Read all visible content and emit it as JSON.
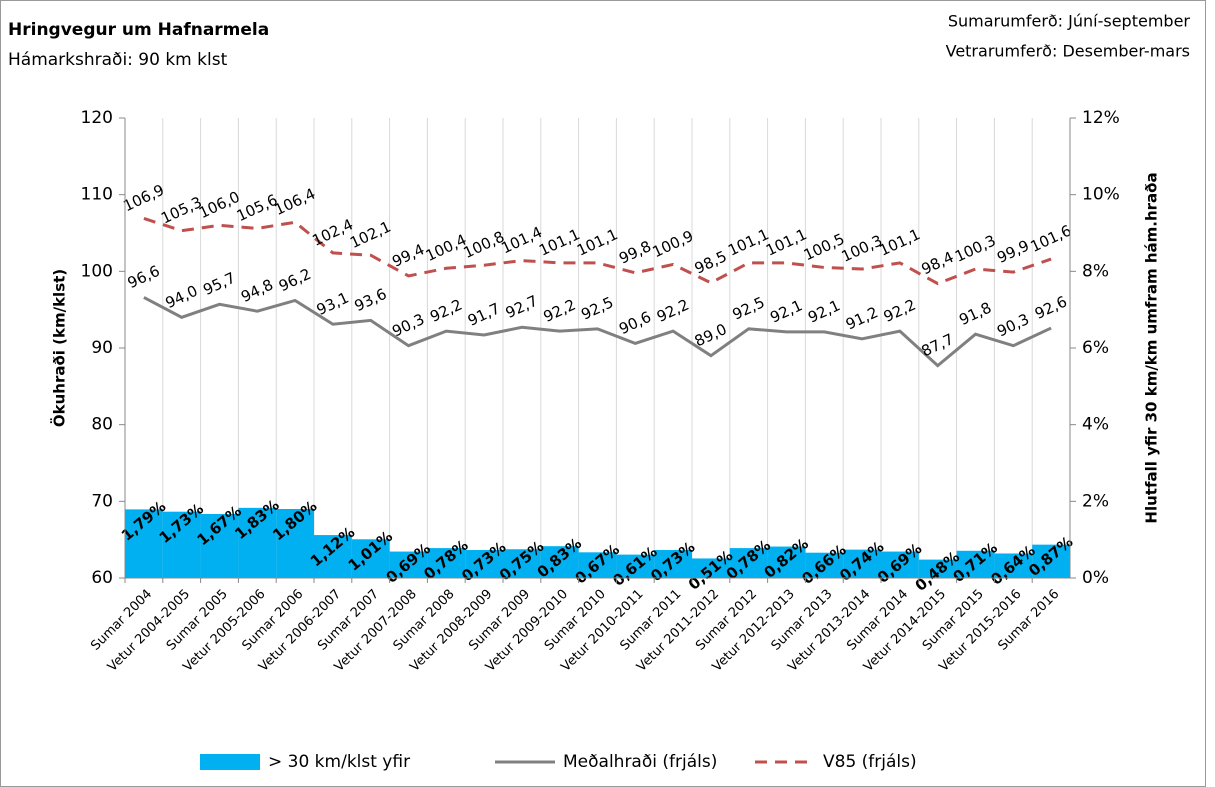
{
  "chart_data": {
    "type": "combo",
    "title": "Hringvegur um Hafnarmela",
    "subtitle": "Hámarkshraði: 90 km klst",
    "annotations": [
      "Sumarumferð:  Júní-september",
      "Vetrarumferð:  Desember-mars"
    ],
    "y_label": "Ökuhraði (km/klst)",
    "y2_label": "Hlutfall yfir 30 km/km umfram hám.hraða",
    "categories": [
      "Sumar 2004",
      "Vetur 2004-2005",
      "Sumar 2005",
      "Vetur 2005-2006",
      "Sumar 2006",
      "Vetur 2006-2007",
      "Sumar 2007",
      "Vetur 2007-2008",
      "Sumar 2008",
      "Vetur 2008-2009",
      "Sumar 2009",
      "Vetur 2009-2010",
      "Sumar 2010",
      "Vetur 2010-2011",
      "Sumar 2011",
      "Vetur 2011-2012",
      "Sumar 2012",
      "Vetur 2012-2013",
      "Sumar 2013",
      "Vetur 2013-2014",
      "Sumar 2014",
      "Vetur 2014-2015",
      "Sumar 2015",
      "Vetur 2015-2016",
      "Sumar 2016"
    ],
    "ylim": [
      60,
      120
    ],
    "yticks": [
      60,
      70,
      80,
      90,
      100,
      110,
      120
    ],
    "y2lim": [
      0,
      12
    ],
    "y2ticks": [
      {
        "value": 0,
        "label": "0%"
      },
      {
        "value": 2,
        "label": "2%"
      },
      {
        "value": 4,
        "label": "4%"
      },
      {
        "value": 6,
        "label": "6%"
      },
      {
        "value": 8,
        "label": "8%"
      },
      {
        "value": 10,
        "label": "10%"
      },
      {
        "value": 12,
        "label": "12%"
      }
    ],
    "series": [
      {
        "name": "> 30 km/klst yfir",
        "type": "area",
        "axis": "y2",
        "color": "#00b0f0",
        "values": [
          1.79,
          1.73,
          1.67,
          1.83,
          1.8,
          1.12,
          1.01,
          0.69,
          0.78,
          0.73,
          0.75,
          0.83,
          0.67,
          0.61,
          0.73,
          0.51,
          0.78,
          0.82,
          0.66,
          0.74,
          0.69,
          0.48,
          0.71,
          0.64,
          0.87
        ],
        "value_labels": [
          "1,79%",
          "1,73%",
          "1,67%",
          "1,83%",
          "1,80%",
          "1,12%",
          "1,01%",
          "0,69%",
          "0,78%",
          "0,73%",
          "0,75%",
          "0,83%",
          "0,67%",
          "0,61%",
          "0,73%",
          "0,51%",
          "0,78%",
          "0,82%",
          "0,66%",
          "0,74%",
          "0,69%",
          "0,48%",
          "0,71%",
          "0,64%",
          "0,87%"
        ]
      },
      {
        "name": "Meðalhraði (frjáls)",
        "type": "line",
        "color": "#808080",
        "values": [
          96.6,
          94.0,
          95.7,
          94.8,
          96.2,
          93.1,
          93.6,
          90.3,
          92.2,
          91.7,
          92.7,
          92.2,
          92.5,
          90.6,
          92.2,
          89.0,
          92.5,
          92.1,
          92.1,
          91.2,
          92.2,
          87.7,
          91.8,
          90.3,
          92.6
        ],
        "value_labels": [
          "96,6",
          "94,0",
          "95,7",
          "94,8",
          "96,2",
          "93,1",
          "93,6",
          "90,3",
          "92,2",
          "91,7",
          "92,7",
          "92,2",
          "92,5",
          "90,6",
          "92,2",
          "89,0",
          "92,5",
          "92,1",
          "92,1",
          "91,2",
          "92,2",
          "87,7",
          "91,8",
          "90,3",
          "92,6"
        ]
      },
      {
        "name": "V85 (frjáls)",
        "type": "line",
        "dashed": true,
        "color": "#c0504d",
        "values": [
          106.9,
          105.3,
          106.0,
          105.6,
          106.4,
          102.4,
          102.1,
          99.4,
          100.4,
          100.8,
          101.4,
          101.1,
          101.1,
          99.8,
          100.9,
          98.5,
          101.1,
          101.1,
          100.5,
          100.3,
          101.1,
          98.4,
          100.3,
          99.9,
          101.6
        ],
        "value_labels": [
          "106,9",
          "105,3",
          "106,0",
          "105,6",
          "106,4",
          "102,4",
          "102,1",
          "99,4",
          "100,4",
          "100,8",
          "101,4",
          "101,1",
          "101,1",
          "99,8",
          "100,9",
          "98,5",
          "101,1",
          "101,1",
          "100,5",
          "100,3",
          "101,1",
          "98,4",
          "100,3",
          "99,9",
          "101,6"
        ]
      }
    ]
  }
}
